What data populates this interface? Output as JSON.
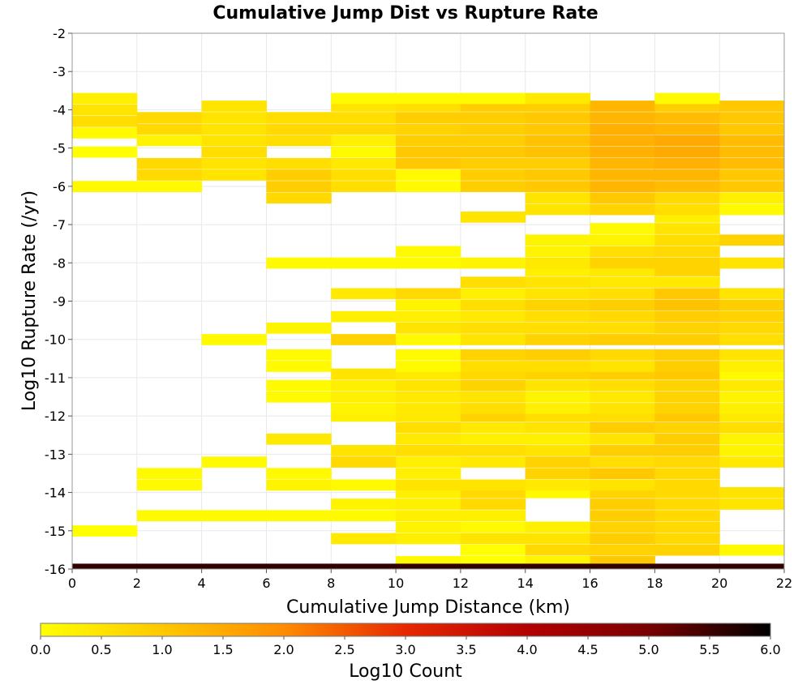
{
  "chart_data": {
    "type": "heatmap",
    "title": "Cumulative Jump Dist vs Rupture Rate",
    "xlabel": "Cumulative Jump Distance (km)",
    "ylabel": "Log10 Rupture Rate (/yr)",
    "xlim": [
      0,
      22
    ],
    "ylim": [
      -16,
      -2
    ],
    "x_ticks": [
      "0",
      "2",
      "4",
      "6",
      "8",
      "10",
      "12",
      "14",
      "16",
      "18",
      "20",
      "22"
    ],
    "y_ticks": [
      "-16",
      "-15",
      "-14",
      "-13",
      "-12",
      "-11",
      "-10",
      "-9",
      "-8",
      "-7",
      "-6",
      "-5",
      "-4",
      "-3",
      "-2"
    ],
    "grid": true,
    "x_bin_width": 2,
    "y_bin_height": 0.28,
    "colorbar": {
      "label": "Log10 Count",
      "min": 0,
      "max": 6,
      "ticks": [
        "0.0",
        "0.5",
        "1.0",
        "1.5",
        "2.0",
        "2.5",
        "3.0",
        "3.5",
        "4.0",
        "4.5",
        "5.0",
        "5.5",
        "6.0"
      ],
      "colors": [
        "#ffff00",
        "#ffc800",
        "#ff8c00",
        "#e62800",
        "#b40000",
        "#780000",
        "#000000"
      ]
    },
    "columns": [
      {
        "x": 0,
        "cells": [
          [
            -15.0,
            0
          ],
          [
            -6.0,
            0.1
          ],
          [
            -5.1,
            0
          ],
          [
            -4.6,
            0.1
          ],
          [
            -4.3,
            0.6
          ],
          [
            -4.0,
            0.5
          ],
          [
            -3.7,
            0.3
          ]
        ]
      },
      {
        "x": 2,
        "cells": [
          [
            -14.6,
            0.1
          ],
          [
            -13.8,
            0.1
          ],
          [
            -13.5,
            0.1
          ],
          [
            -6.0,
            0.1
          ],
          [
            -5.7,
            0.7
          ],
          [
            -5.4,
            0.7
          ],
          [
            -4.8,
            0.2
          ],
          [
            -4.5,
            0.7
          ],
          [
            -4.2,
            0.7
          ]
        ]
      },
      {
        "x": 4,
        "cells": [
          [
            -14.6,
            0.1
          ],
          [
            -13.2,
            0.1
          ],
          [
            -10.0,
            0.1
          ],
          [
            -5.7,
            0.5
          ],
          [
            -5.4,
            0.5
          ],
          [
            -5.1,
            0.6
          ],
          [
            -4.8,
            0.5
          ],
          [
            -4.5,
            0.5
          ],
          [
            -4.2,
            0.5
          ],
          [
            -3.9,
            0.5
          ]
        ]
      },
      {
        "x": 6,
        "cells": [
          [
            -14.6,
            0.1
          ],
          [
            -13.8,
            0.2
          ],
          [
            -13.5,
            0.1
          ],
          [
            -12.6,
            0.4
          ],
          [
            -11.5,
            0.1
          ],
          [
            -11.2,
            0.1
          ],
          [
            -10.7,
            0.1
          ],
          [
            -10.4,
            0.1
          ],
          [
            -9.7,
            0.2
          ],
          [
            -8.0,
            0.1
          ],
          [
            -6.3,
            0.7
          ],
          [
            -6.0,
            0.9
          ],
          [
            -5.7,
            0.9
          ],
          [
            -5.4,
            0.6
          ],
          [
            -4.8,
            0.6
          ],
          [
            -4.5,
            0.7
          ],
          [
            -4.2,
            0.6
          ]
        ]
      },
      {
        "x": 8,
        "cells": [
          [
            -15.2,
            0.4
          ],
          [
            -14.6,
            0.1
          ],
          [
            -14.3,
            0.2
          ],
          [
            -13.8,
            0.1
          ],
          [
            -13.2,
            0.7
          ],
          [
            -12.9,
            0.5
          ],
          [
            -12.0,
            0.3
          ],
          [
            -11.8,
            0.2
          ],
          [
            -11.5,
            0.3
          ],
          [
            -11.2,
            0.3
          ],
          [
            -10.9,
            0.5
          ],
          [
            -10.0,
            0.8
          ],
          [
            -9.4,
            0.3
          ],
          [
            -8.8,
            0.4
          ],
          [
            -8.0,
            0.1
          ],
          [
            -6.0,
            0.6
          ],
          [
            -5.7,
            0.6
          ],
          [
            -5.4,
            0.4
          ],
          [
            -5.1,
            0.1
          ],
          [
            -4.8,
            0.3
          ],
          [
            -4.5,
            0.7
          ],
          [
            -4.2,
            0.6
          ],
          [
            -3.9,
            0.5
          ],
          [
            -3.7,
            0.1
          ]
        ]
      },
      {
        "x": 10,
        "cells": [
          [
            -15.8,
            0.1
          ],
          [
            -15.2,
            0.3
          ],
          [
            -14.9,
            0.2
          ],
          [
            -14.6,
            0.3
          ],
          [
            -14.3,
            0.3
          ],
          [
            -14.0,
            0.3
          ],
          [
            -13.8,
            0.5
          ],
          [
            -13.5,
            0.3
          ],
          [
            -13.2,
            0.3
          ],
          [
            -12.9,
            0.6
          ],
          [
            -12.6,
            0.4
          ],
          [
            -12.3,
            0.6
          ],
          [
            -12.0,
            0.4
          ],
          [
            -11.8,
            0.4
          ],
          [
            -11.5,
            0.4
          ],
          [
            -11.2,
            0.5
          ],
          [
            -10.9,
            0.4
          ],
          [
            -10.7,
            0.1
          ],
          [
            -10.4,
            0.1
          ],
          [
            -10.0,
            0.1
          ],
          [
            -9.7,
            0.5
          ],
          [
            -9.4,
            0.3
          ],
          [
            -9.1,
            0.2
          ],
          [
            -8.8,
            0.7
          ],
          [
            -8.0,
            0.1
          ],
          [
            -7.7,
            0.1
          ],
          [
            -6.0,
            0.1
          ],
          [
            -5.7,
            0.1
          ],
          [
            -5.4,
            1.0
          ],
          [
            -5.1,
            1.0
          ],
          [
            -4.8,
            0.9
          ],
          [
            -4.5,
            0.8
          ],
          [
            -4.2,
            0.9
          ],
          [
            -3.9,
            0.6
          ],
          [
            -3.7,
            0.1
          ]
        ]
      },
      {
        "x": 12,
        "cells": [
          [
            -15.8,
            0
          ],
          [
            -15.5,
            0
          ],
          [
            -15.2,
            0.5
          ],
          [
            -14.9,
            0.1
          ],
          [
            -14.6,
            0.3
          ],
          [
            -14.3,
            0.7
          ],
          [
            -14.0,
            0.7
          ],
          [
            -13.8,
            0.5
          ],
          [
            -13.2,
            0.4
          ],
          [
            -12.9,
            0.6
          ],
          [
            -12.6,
            0.3
          ],
          [
            -12.3,
            0.4
          ],
          [
            -12.0,
            0.8
          ],
          [
            -11.8,
            0.6
          ],
          [
            -11.5,
            0.5
          ],
          [
            -11.2,
            0.8
          ],
          [
            -10.9,
            0.7
          ],
          [
            -10.7,
            0.6
          ],
          [
            -10.4,
            0.8
          ],
          [
            -10.0,
            0.5
          ],
          [
            -9.7,
            0.6
          ],
          [
            -9.4,
            0.4
          ],
          [
            -9.1,
            0.6
          ],
          [
            -8.8,
            0.3
          ],
          [
            -8.5,
            0.6
          ],
          [
            -8.0,
            0.2
          ],
          [
            -6.8,
            0.5
          ],
          [
            -6.0,
            0.9
          ],
          [
            -5.7,
            0.9
          ],
          [
            -5.4,
            0.9
          ],
          [
            -5.1,
            1.0
          ],
          [
            -4.8,
            0.9
          ],
          [
            -4.5,
            0.9
          ],
          [
            -4.2,
            0.9
          ],
          [
            -3.9,
            0.9
          ],
          [
            -3.7,
            0.1
          ]
        ]
      },
      {
        "x": 14,
        "cells": [
          [
            -15.8,
            0.2
          ],
          [
            -15.5,
            0.7
          ],
          [
            -15.2,
            0.5
          ],
          [
            -14.9,
            0.3
          ],
          [
            -14.0,
            0.1
          ],
          [
            -13.8,
            0.4
          ],
          [
            -13.5,
            0.8
          ],
          [
            -13.2,
            0.8
          ],
          [
            -12.9,
            0.5
          ],
          [
            -12.6,
            0.3
          ],
          [
            -12.3,
            0.5
          ],
          [
            -12.0,
            0.6
          ],
          [
            -11.8,
            0.3
          ],
          [
            -11.5,
            0.2
          ],
          [
            -11.2,
            0.5
          ],
          [
            -10.9,
            0.8
          ],
          [
            -10.7,
            0.6
          ],
          [
            -10.4,
            0.9
          ],
          [
            -10.0,
            0.8
          ],
          [
            -9.7,
            0.6
          ],
          [
            -9.4,
            0.6
          ],
          [
            -9.1,
            0.8
          ],
          [
            -8.8,
            0.5
          ],
          [
            -8.5,
            0.5
          ],
          [
            -8.2,
            0.3
          ],
          [
            -8.0,
            0.4
          ],
          [
            -7.7,
            0.2
          ],
          [
            -7.4,
            0.2
          ],
          [
            -6.6,
            0.5
          ],
          [
            -6.3,
            0.5
          ],
          [
            -6.0,
            1.0
          ],
          [
            -5.7,
            1.0
          ],
          [
            -5.4,
            0.9
          ],
          [
            -5.1,
            1.1
          ],
          [
            -4.8,
            1.1
          ],
          [
            -4.5,
            1.0
          ],
          [
            -4.2,
            1.0
          ],
          [
            -3.9,
            0.9
          ],
          [
            -3.7,
            0.4
          ]
        ]
      },
      {
        "x": 16,
        "cells": [
          [
            -15.8,
            1.0
          ],
          [
            -15.5,
            0.8
          ],
          [
            -15.2,
            0.9
          ],
          [
            -14.9,
            0.8
          ],
          [
            -14.6,
            0.9
          ],
          [
            -14.3,
            0.9
          ],
          [
            -14.0,
            0.8
          ],
          [
            -13.8,
            0.5
          ],
          [
            -13.5,
            1.0
          ],
          [
            -13.2,
            0.6
          ],
          [
            -12.9,
            0.9
          ],
          [
            -12.6,
            0.5
          ],
          [
            -12.3,
            0.9
          ],
          [
            -12.0,
            0.6
          ],
          [
            -11.8,
            0.5
          ],
          [
            -11.5,
            0.4
          ],
          [
            -11.2,
            0.6
          ],
          [
            -10.9,
            0.9
          ],
          [
            -10.7,
            0.5
          ],
          [
            -10.4,
            0.7
          ],
          [
            -10.0,
            0.9
          ],
          [
            -9.7,
            0.6
          ],
          [
            -9.4,
            0.7
          ],
          [
            -9.1,
            0.9
          ],
          [
            -8.8,
            0.6
          ],
          [
            -8.5,
            0.4
          ],
          [
            -8.2,
            0.4
          ],
          [
            -8.0,
            0.8
          ],
          [
            -7.7,
            0.6
          ],
          [
            -7.4,
            0.2
          ],
          [
            -7.1,
            0.1
          ],
          [
            -6.6,
            0.8
          ],
          [
            -6.3,
            1.0
          ],
          [
            -6.0,
            1.3
          ],
          [
            -5.7,
            1.3
          ],
          [
            -5.4,
            1.3
          ],
          [
            -5.1,
            1.4
          ],
          [
            -4.8,
            1.4
          ],
          [
            -4.5,
            1.4
          ],
          [
            -4.2,
            1.3
          ],
          [
            -3.9,
            1.3
          ]
        ]
      },
      {
        "x": 18,
        "cells": [
          [
            -15.5,
            0.8
          ],
          [
            -15.2,
            0.7
          ],
          [
            -14.9,
            0.7
          ],
          [
            -14.6,
            0.7
          ],
          [
            -14.3,
            0.7
          ],
          [
            -14.0,
            0.7
          ],
          [
            -13.8,
            0.7
          ],
          [
            -13.5,
            0.7
          ],
          [
            -13.2,
            0.7
          ],
          [
            -12.9,
            0.9
          ],
          [
            -12.6,
            0.9
          ],
          [
            -12.3,
            0.8
          ],
          [
            -12.0,
            1.0
          ],
          [
            -11.8,
            0.8
          ],
          [
            -11.5,
            0.8
          ],
          [
            -11.2,
            0.8
          ],
          [
            -10.9,
            1.0
          ],
          [
            -10.7,
            0.9
          ],
          [
            -10.4,
            0.9
          ],
          [
            -10.0,
            0.9
          ],
          [
            -9.7,
            0.8
          ],
          [
            -9.4,
            0.9
          ],
          [
            -9.1,
            1.1
          ],
          [
            -8.8,
            1.0
          ],
          [
            -8.5,
            0.4
          ],
          [
            -8.2,
            0.8
          ],
          [
            -8.0,
            0.8
          ],
          [
            -7.7,
            0.7
          ],
          [
            -7.4,
            0.6
          ],
          [
            -7.1,
            0.5
          ],
          [
            -6.8,
            0.3
          ],
          [
            -6.6,
            0.6
          ],
          [
            -6.3,
            0.7
          ],
          [
            -6.0,
            1.2
          ],
          [
            -5.7,
            1.3
          ],
          [
            -5.4,
            1.4
          ],
          [
            -5.1,
            1.5
          ],
          [
            -4.8,
            1.5
          ],
          [
            -4.5,
            1.3
          ],
          [
            -4.2,
            1.2
          ],
          [
            -3.9,
            0.9
          ],
          [
            -3.7,
            0.1
          ]
        ]
      },
      {
        "x": 20,
        "cells": [
          [
            -15.5,
            0.1
          ],
          [
            -14.3,
            0.5
          ],
          [
            -14.0,
            0.5
          ],
          [
            -13.2,
            0.4
          ],
          [
            -12.9,
            0.2
          ],
          [
            -12.6,
            0.2
          ],
          [
            -12.3,
            0.6
          ],
          [
            -12.0,
            0.4
          ],
          [
            -11.8,
            0.3
          ],
          [
            -11.5,
            0.2
          ],
          [
            -11.2,
            0.4
          ],
          [
            -10.9,
            0.1
          ],
          [
            -10.7,
            0.3
          ],
          [
            -10.4,
            0.5
          ],
          [
            -10.0,
            0.6
          ],
          [
            -9.7,
            0.7
          ],
          [
            -9.4,
            0.8
          ],
          [
            -9.1,
            0.9
          ],
          [
            -8.8,
            0.5
          ],
          [
            -8.0,
            0.5
          ],
          [
            -7.4,
            0.8
          ],
          [
            -6.6,
            0.1
          ],
          [
            -6.3,
            0.3
          ],
          [
            -6.0,
            1.0
          ],
          [
            -5.7,
            1.0
          ],
          [
            -5.4,
            1.2
          ],
          [
            -5.1,
            1.2
          ],
          [
            -4.8,
            1.2
          ],
          [
            -4.5,
            1.0
          ],
          [
            -4.2,
            1.0
          ],
          [
            -3.9,
            1.0
          ]
        ]
      }
    ],
    "bottom_row": {
      "y": -16,
      "value": 5.6
    }
  }
}
